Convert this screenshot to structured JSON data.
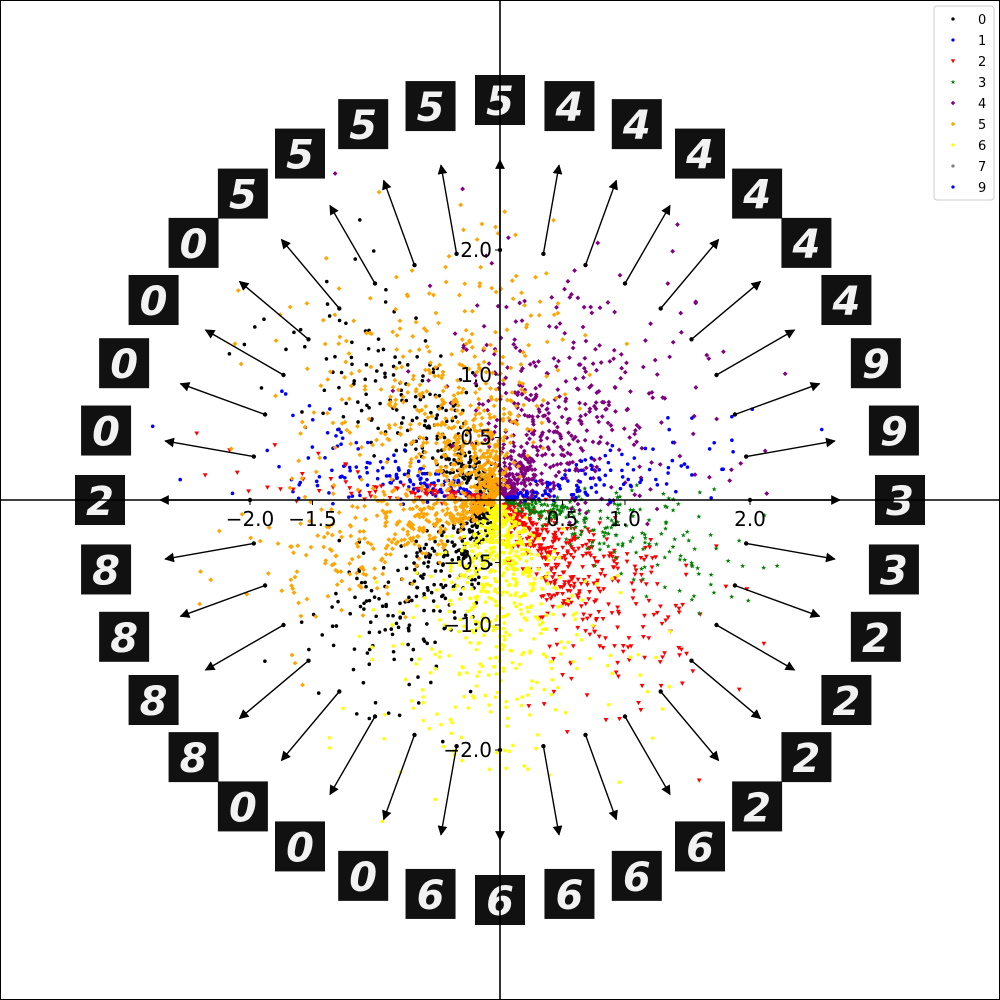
{
  "chart_data": {
    "type": "scatter",
    "title": "",
    "xlabel": "",
    "ylabel": "",
    "xlim": [
      -4.0,
      4.0
    ],
    "ylim": [
      -4.0,
      4.0
    ],
    "axes_through_origin": true,
    "grid": false,
    "legend_position": "top-right",
    "x_ticks": [
      {
        "value": -2.0,
        "label": "−2.0"
      },
      {
        "value": -1.5,
        "label": "−1.5"
      },
      {
        "value": 0.5,
        "label": "0.5"
      },
      {
        "value": 1.0,
        "label": "1.0"
      },
      {
        "value": 2.0,
        "label": "2.0"
      }
    ],
    "y_ticks": [
      {
        "value": 2.0,
        "label": "2.0"
      },
      {
        "value": 1.0,
        "label": "1.0"
      },
      {
        "value": 0.5,
        "label": "0.5"
      },
      {
        "value": -0.5,
        "label": "−0.5"
      },
      {
        "value": -1.0,
        "label": "−1.0"
      },
      {
        "value": -2.0,
        "label": "−2.0"
      }
    ],
    "series": [
      {
        "name": "0",
        "color": "#000000",
        "marker": "dot",
        "angle_range_deg": [
          120,
          150
        ],
        "count": 260
      },
      {
        "name": "0",
        "color": "#000000",
        "marker": "dot",
        "angle_range_deg": [
          212,
          244
        ],
        "count": 300
      },
      {
        "name": "1",
        "color": "#0000ff",
        "marker": "dot",
        "angle_range_deg": [
          158,
          176
        ],
        "count": 170
      },
      {
        "name": "2",
        "color": "#ff0000",
        "marker": "triangle",
        "angle_range_deg": [
          170,
          180
        ],
        "count": 90
      },
      {
        "name": "2",
        "color": "#ff0000",
        "marker": "triangle",
        "angle_range_deg": [
          298,
          335
        ],
        "count": 420
      },
      {
        "name": "3",
        "color": "#008000",
        "marker": "star",
        "angle_range_deg": [
          335,
          358
        ],
        "count": 230
      },
      {
        "name": "4",
        "color": "#800080",
        "marker": "diamond",
        "angle_range_deg": [
          22,
          86
        ],
        "count": 560
      },
      {
        "name": "5",
        "color": "#ffa500",
        "marker": "diamond",
        "angle_range_deg": [
          88,
          150
        ],
        "count": 620
      },
      {
        "name": "5",
        "color": "#ffa500",
        "marker": "diamond",
        "angle_range_deg": [
          182,
          212
        ],
        "count": 360
      },
      {
        "name": "6",
        "color": "#ffff00",
        "marker": "dot",
        "angle_range_deg": [
          244,
          298
        ],
        "count": 640
      },
      {
        "name": "9",
        "color": "#0000ff",
        "marker": "dot",
        "angle_range_deg": [
          5,
          22
        ],
        "count": 120
      }
    ],
    "legend": [
      {
        "label": "0",
        "color": "#000000",
        "marker": "dot"
      },
      {
        "label": "1",
        "color": "#0000ff",
        "marker": "dot"
      },
      {
        "label": "2",
        "color": "#ff0000",
        "marker": "triangle"
      },
      {
        "label": "3",
        "color": "#008000",
        "marker": "star"
      },
      {
        "label": "4",
        "color": "#800080",
        "marker": "diamond"
      },
      {
        "label": "5",
        "color": "#ffa500",
        "marker": "diamond"
      },
      {
        "label": "6",
        "color": "#ffff00",
        "marker": "dot"
      },
      {
        "label": "7",
        "color": "#808080",
        "marker": "dot"
      },
      {
        "label": "9",
        "color": "#0000ff",
        "marker": "dot"
      }
    ],
    "direction_arrows_deg": [
      0,
      10,
      20,
      30,
      40,
      50,
      60,
      70,
      80,
      90,
      100,
      110,
      120,
      130,
      140,
      150,
      160,
      170,
      180,
      190,
      200,
      210,
      220,
      230,
      240,
      250,
      260,
      270,
      280,
      290,
      300,
      310,
      320,
      330,
      340,
      350
    ],
    "decoded_digit_images": [
      {
        "angle_deg": 0,
        "digit": "3"
      },
      {
        "angle_deg": 10,
        "digit": "9"
      },
      {
        "angle_deg": 20,
        "digit": "9"
      },
      {
        "angle_deg": 30,
        "digit": "4"
      },
      {
        "angle_deg": 40,
        "digit": "4"
      },
      {
        "angle_deg": 50,
        "digit": "4"
      },
      {
        "angle_deg": 60,
        "digit": "4"
      },
      {
        "angle_deg": 70,
        "digit": "4"
      },
      {
        "angle_deg": 80,
        "digit": "4"
      },
      {
        "angle_deg": 90,
        "digit": "5"
      },
      {
        "angle_deg": 100,
        "digit": "5"
      },
      {
        "angle_deg": 110,
        "digit": "5"
      },
      {
        "angle_deg": 120,
        "digit": "5"
      },
      {
        "angle_deg": 130,
        "digit": "5"
      },
      {
        "angle_deg": 140,
        "digit": "0"
      },
      {
        "angle_deg": 150,
        "digit": "0"
      },
      {
        "angle_deg": 160,
        "digit": "0"
      },
      {
        "angle_deg": 170,
        "digit": "0"
      },
      {
        "angle_deg": 180,
        "digit": "2"
      },
      {
        "angle_deg": 190,
        "digit": "8"
      },
      {
        "angle_deg": 200,
        "digit": "8"
      },
      {
        "angle_deg": 210,
        "digit": "8"
      },
      {
        "angle_deg": 220,
        "digit": "8"
      },
      {
        "angle_deg": 230,
        "digit": "0"
      },
      {
        "angle_deg": 240,
        "digit": "0"
      },
      {
        "angle_deg": 250,
        "digit": "0"
      },
      {
        "angle_deg": 260,
        "digit": "6"
      },
      {
        "angle_deg": 270,
        "digit": "6"
      },
      {
        "angle_deg": 280,
        "digit": "6"
      },
      {
        "angle_deg": 290,
        "digit": "6"
      },
      {
        "angle_deg": 300,
        "digit": "6"
      },
      {
        "angle_deg": 310,
        "digit": "2"
      },
      {
        "angle_deg": 320,
        "digit": "2"
      },
      {
        "angle_deg": 330,
        "digit": "2"
      },
      {
        "angle_deg": 340,
        "digit": "2"
      },
      {
        "angle_deg": 350,
        "digit": "3"
      }
    ]
  }
}
